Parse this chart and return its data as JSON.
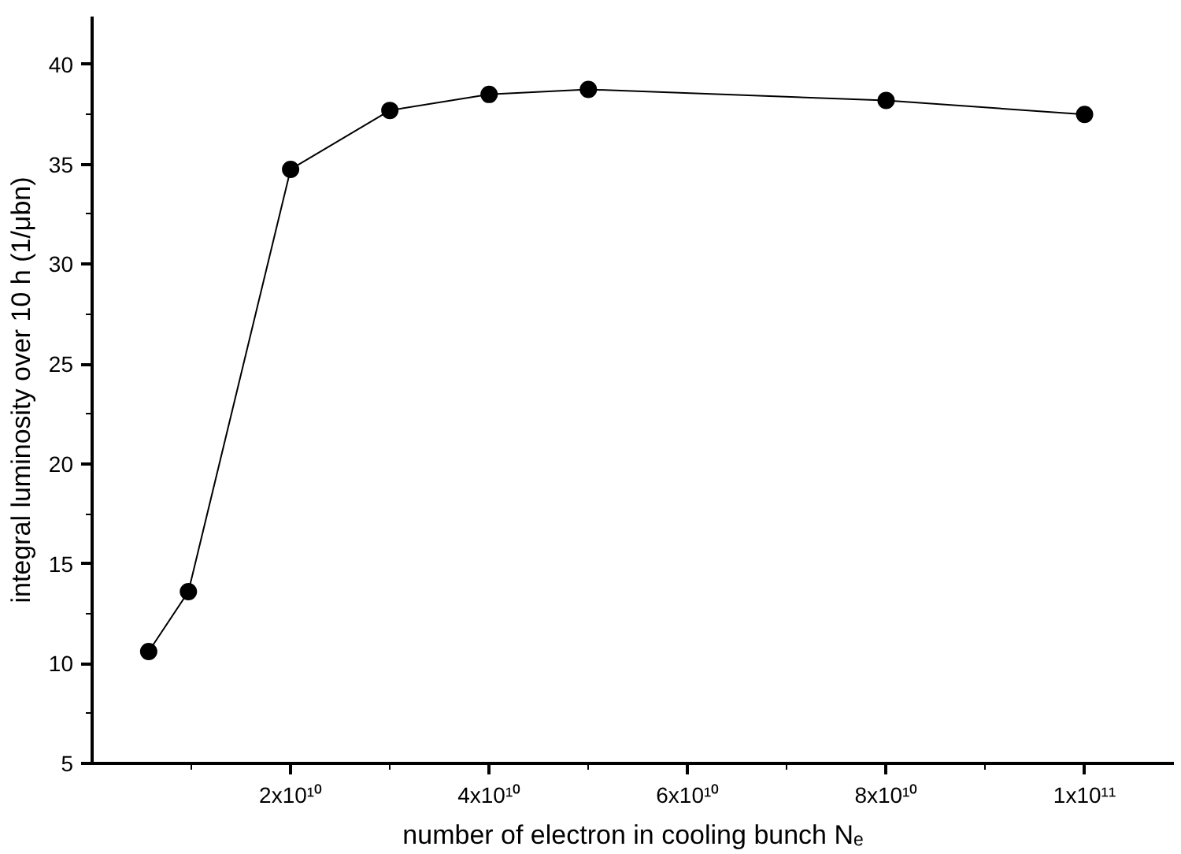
{
  "chart_data": {
    "type": "line",
    "xlabel": "number of electron in cooling bunch Nₑ",
    "ylabel": "integral luminosity over 10 h (1/μbn)",
    "xlim": [
      0,
      109000000000
    ],
    "ylim": [
      5,
      42.4
    ],
    "xticks": [
      {
        "value": 10000000000,
        "label": null
      },
      {
        "value": 20000000000,
        "label": "2x10¹⁰"
      },
      {
        "value": 30000000000,
        "label": null
      },
      {
        "value": 40000000000,
        "label": "4x10¹⁰"
      },
      {
        "value": 50000000000,
        "label": null
      },
      {
        "value": 60000000000,
        "label": "6x10¹⁰"
      },
      {
        "value": 70000000000,
        "label": null
      },
      {
        "value": 80000000000,
        "label": "8x10¹⁰"
      },
      {
        "value": 90000000000,
        "label": null
      },
      {
        "value": 100000000000,
        "label": "1x10¹¹"
      }
    ],
    "yticks": [
      5,
      {
        "value": 7.5,
        "label": null
      },
      10,
      {
        "value": 12.5,
        "label": null
      },
      15,
      {
        "value": 17.5,
        "label": null
      },
      20,
      {
        "value": 22.5,
        "label": null
      },
      25,
      {
        "value": 27.5,
        "label": null
      },
      30,
      {
        "value": 32.5,
        "label": null
      },
      35,
      {
        "value": 37.5,
        "label": null
      },
      40
    ],
    "grid": false,
    "line_style": "solid",
    "series": [
      {
        "color": "#000000",
        "marker": "circle",
        "x": [
          5700000000,
          9700000000,
          20000000000,
          30000000000,
          40000000000,
          50000000000,
          80000000000,
          100000000000
        ],
        "values": [
          10.6,
          13.6,
          34.75,
          37.7,
          38.5,
          38.75,
          38.2,
          37.5
        ]
      }
    ]
  }
}
